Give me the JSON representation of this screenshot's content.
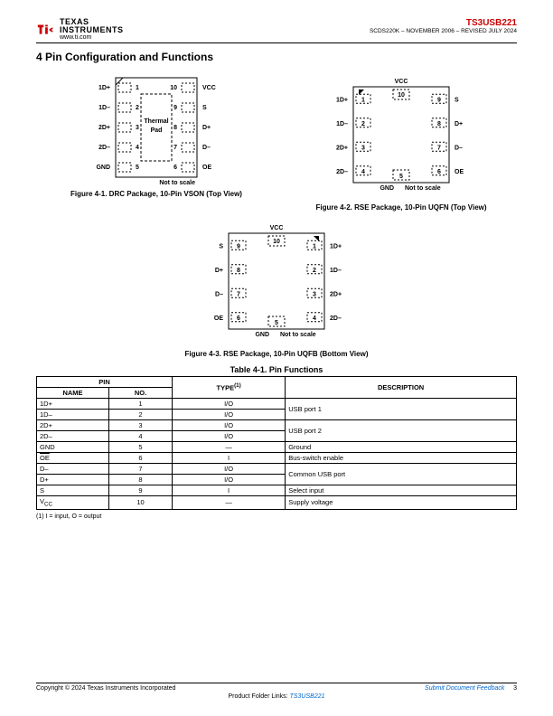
{
  "header": {
    "logo_top": "TEXAS",
    "logo_bot": "INSTRUMENTS",
    "url": "www.ti.com",
    "part": "TS3USB221",
    "rev": "SCDS220K – NOVEMBER 2006 – REVISED JULY 2024"
  },
  "section_title": "4 Pin Configuration and Functions",
  "not_to_scale": "Not to scale",
  "fig1": {
    "caption": "Figure 4-1. DRC Package, 10-Pin VSON (Top View)",
    "left_pins": [
      {
        "n": "1",
        "l": "1D+"
      },
      {
        "n": "2",
        "l": "1D–"
      },
      {
        "n": "3",
        "l": "2D+"
      },
      {
        "n": "4",
        "l": "2D–"
      },
      {
        "n": "5",
        "l": "GND"
      }
    ],
    "right_pins": [
      {
        "n": "10",
        "l": "VCC"
      },
      {
        "n": "9",
        "l": "S"
      },
      {
        "n": "8",
        "l": "D+"
      },
      {
        "n": "7",
        "l": "D–"
      },
      {
        "n": "6",
        "l": "OE",
        "ol": true
      }
    ],
    "thermal": "Thermal\nPad"
  },
  "fig2": {
    "caption": "Figure 4-2. RSE Package, 10-Pin UQFN (Top View)",
    "vcc": "VCC",
    "gnd": "GND",
    "left": [
      {
        "n": "1",
        "l": "1D+"
      },
      {
        "n": "2",
        "l": "1D–"
      },
      {
        "n": "3",
        "l": "2D+"
      },
      {
        "n": "4",
        "l": "2D–"
      }
    ],
    "right": [
      {
        "n": "9",
        "l": "S"
      },
      {
        "n": "8",
        "l": "D+"
      },
      {
        "n": "7",
        "l": "D–"
      },
      {
        "n": "6",
        "l": "OE",
        "ol": true
      }
    ],
    "top_n": "10",
    "bot_n": "5"
  },
  "fig3": {
    "caption": "Figure 4-3. RSE Package, 10-Pin UQFB (Bottom View)",
    "vcc": "VCC",
    "gnd": "GND",
    "left": [
      {
        "n": "9",
        "l": "S"
      },
      {
        "n": "8",
        "l": "D+"
      },
      {
        "n": "7",
        "l": "D–"
      },
      {
        "n": "6",
        "l": "OE",
        "ol": true
      }
    ],
    "right": [
      {
        "n": "1",
        "l": "1D+"
      },
      {
        "n": "2",
        "l": "1D–"
      },
      {
        "n": "3",
        "l": "2D+"
      },
      {
        "n": "4",
        "l": "2D–"
      }
    ],
    "top_n": "10",
    "bot_n": "5"
  },
  "table": {
    "title": "Table 4-1. Pin Functions",
    "hdr_pin": "PIN",
    "hdr_name": "NAME",
    "hdr_no": "NO.",
    "hdr_type": "TYPE",
    "type_sup": "(1)",
    "hdr_desc": "DESCRIPTION",
    "rows": [
      {
        "name": "1D+",
        "no": "1",
        "type": "I/O",
        "desc": "USB port 1",
        "rowspan": 2
      },
      {
        "name": "1D–",
        "no": "2",
        "type": "I/O"
      },
      {
        "name": "2D+",
        "no": "3",
        "type": "I/O",
        "desc": "USB port 2",
        "rowspan": 2
      },
      {
        "name": "2D–",
        "no": "4",
        "type": "I/O"
      },
      {
        "name": "GND",
        "no": "5",
        "type": "—",
        "desc": "Ground"
      },
      {
        "name": "OE",
        "ol": true,
        "no": "6",
        "type": "I",
        "desc": "Bus-switch enable"
      },
      {
        "name": "D–",
        "no": "7",
        "type": "I/O",
        "desc": "Common USB port",
        "rowspan": 2
      },
      {
        "name": "D+",
        "no": "8",
        "type": "I/O"
      },
      {
        "name": "S",
        "no": "9",
        "type": "I",
        "desc": "Select input"
      },
      {
        "name": "VCC",
        "sub": "CC",
        "base": "V",
        "no": "10",
        "type": "—",
        "desc": "Supply voltage"
      }
    ]
  },
  "footnote": "(1)   I = input, O = output",
  "footer": {
    "copyright": "Copyright © 2024 Texas Instruments Incorporated",
    "feedback": "Submit Document Feedback",
    "page": "3",
    "links_label": "Product Folder Links:",
    "link": "TS3USB221"
  },
  "colors": {
    "red": "#cc0000",
    "blue": "#0066cc",
    "black": "#000000"
  }
}
